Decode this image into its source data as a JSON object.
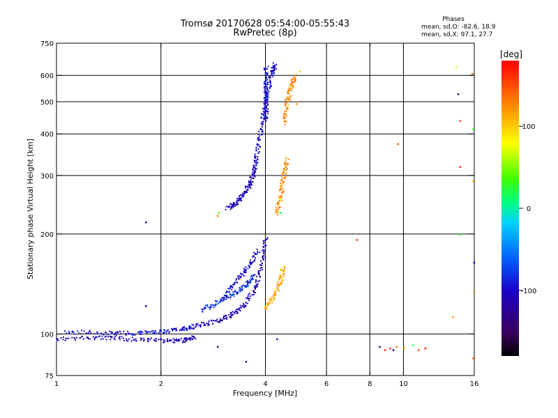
{
  "chart_data": {
    "type": "scatter",
    "title": "Tromsø 20170628 05:54:00-05:55:43",
    "subtitle": "RwPretec (8p)",
    "xlabel": "Frequency [MHz]",
    "ylabel": "Stationary phase Virtual Height [km]",
    "x_scale": "log",
    "y_scale": "log",
    "xlim": [
      1,
      16
    ],
    "ylim": [
      75,
      750
    ],
    "x_ticks": [
      1,
      2,
      4,
      6,
      8,
      10,
      16
    ],
    "x_ticklabels": [
      "1",
      "2",
      "4",
      "6",
      "8",
      "10",
      "16"
    ],
    "x_grid": [
      2,
      4,
      6,
      8,
      10
    ],
    "y_ticks": [
      75,
      100,
      200,
      300,
      400,
      500,
      600,
      750
    ],
    "y_ticklabels": [
      "75",
      "100",
      "200",
      "300",
      "400",
      "500",
      "600",
      "750"
    ],
    "y_grid": [
      100,
      200,
      300,
      400,
      500,
      600
    ],
    "stats": {
      "header": "Phases",
      "line_o": "mean, sd,O: -82.6, 18.9",
      "line_x": "mean, sd,X:  97.1, 27.7"
    },
    "colorbar": {
      "unit": "[deg]",
      "range": [
        -180,
        180
      ],
      "ticks": [
        100,
        0,
        -100
      ],
      "ticklabels": [
        "100",
        "0",
        "-100"
      ]
    },
    "series": [
      {
        "name": "trace-low-1",
        "phase": -105,
        "segments": [
          [
            1.0,
            97
          ],
          [
            1.3,
            98
          ],
          [
            1.6,
            97
          ],
          [
            2.0,
            96
          ],
          [
            2.3,
            96
          ],
          [
            2.5,
            98
          ]
        ]
      },
      {
        "name": "trace-low-2",
        "phase": -95,
        "segments": [
          [
            1.05,
            102
          ],
          [
            1.4,
            101
          ],
          [
            1.7,
            101
          ],
          [
            2.0,
            102
          ],
          [
            2.3,
            104
          ],
          [
            2.5,
            106
          ]
        ]
      },
      {
        "name": "trace-rise-1",
        "phase": -110,
        "segments": [
          [
            2.5,
            106
          ],
          [
            2.9,
            110
          ],
          [
            3.2,
            115
          ],
          [
            3.5,
            124
          ],
          [
            3.75,
            140
          ],
          [
            3.9,
            165
          ],
          [
            4.0,
            195
          ]
        ]
      },
      {
        "name": "trace-rise-2",
        "phase": -80,
        "segments": [
          [
            2.6,
            118
          ],
          [
            2.9,
            125
          ],
          [
            3.2,
            132
          ],
          [
            3.5,
            140
          ],
          [
            3.7,
            150
          ]
        ]
      },
      {
        "name": "trace-rise-3",
        "phase": -100,
        "segments": [
          [
            3.0,
            128
          ],
          [
            3.3,
            145
          ],
          [
            3.55,
            160
          ],
          [
            3.8,
            180
          ]
        ]
      },
      {
        "name": "trace-F-low",
        "phase": -105,
        "segments": [
          [
            3.1,
            240
          ],
          [
            3.3,
            250
          ],
          [
            3.45,
            265
          ],
          [
            3.6,
            285
          ],
          [
            3.7,
            310
          ],
          [
            3.75,
            340
          ]
        ]
      },
      {
        "name": "trace-F-high",
        "phase": -100,
        "segments": [
          [
            3.75,
            340
          ],
          [
            3.85,
            400
          ],
          [
            3.95,
            470
          ],
          [
            4.05,
            540
          ],
          [
            4.15,
            610
          ],
          [
            4.25,
            650
          ]
        ]
      },
      {
        "name": "trace-F-column",
        "phase": -95,
        "segments": [
          [
            4.0,
            440
          ],
          [
            4.0,
            500
          ],
          [
            4.0,
            560
          ],
          [
            4.0,
            640
          ]
        ]
      },
      {
        "name": "trace-x-low",
        "phase": 110,
        "segments": [
          [
            4.0,
            120
          ],
          [
            4.2,
            130
          ],
          [
            4.4,
            145
          ],
          [
            4.5,
            160
          ]
        ]
      },
      {
        "name": "trace-x-mid",
        "phase": 120,
        "segments": [
          [
            4.3,
            230
          ],
          [
            4.4,
            260
          ],
          [
            4.5,
            300
          ],
          [
            4.6,
            340
          ]
        ]
      },
      {
        "name": "trace-x-high",
        "phase": 125,
        "segments": [
          [
            4.5,
            430
          ],
          [
            4.6,
            500
          ],
          [
            4.75,
            560
          ],
          [
            4.85,
            600
          ]
        ]
      }
    ],
    "scatter": [
      {
        "x": 1.8,
        "y": 218,
        "phase": -110
      },
      {
        "x": 1.8,
        "y": 122,
        "phase": -100
      },
      {
        "x": 2.9,
        "y": 228,
        "phase": 130
      },
      {
        "x": 2.92,
        "y": 233,
        "phase": 40
      },
      {
        "x": 2.9,
        "y": 92,
        "phase": -150
      },
      {
        "x": 3.5,
        "y": 83,
        "phase": -120
      },
      {
        "x": 4.3,
        "y": 97,
        "phase": -90
      },
      {
        "x": 4.4,
        "y": 233,
        "phase": 10
      },
      {
        "x": 4.4,
        "y": 255,
        "phase": 80
      },
      {
        "x": 7.3,
        "y": 193,
        "phase": 160
      },
      {
        "x": 8.5,
        "y": 92,
        "phase": -140
      },
      {
        "x": 8.8,
        "y": 90,
        "phase": 170
      },
      {
        "x": 9.1,
        "y": 91,
        "phase": 160
      },
      {
        "x": 9.3,
        "y": 90,
        "phase": -120
      },
      {
        "x": 9.5,
        "y": 92,
        "phase": 140
      },
      {
        "x": 10.0,
        "y": 91,
        "phase": 110
      },
      {
        "x": 10.6,
        "y": 93,
        "phase": 20
      },
      {
        "x": 11.0,
        "y": 90,
        "phase": 150
      },
      {
        "x": 11.5,
        "y": 91,
        "phase": 170
      },
      {
        "x": 9.6,
        "y": 375,
        "phase": 150
      },
      {
        "x": 14.1,
        "y": 640,
        "phase": 70
      },
      {
        "x": 14.3,
        "y": 530,
        "phase": -150
      },
      {
        "x": 14.5,
        "y": 440,
        "phase": 160
      },
      {
        "x": 14.5,
        "y": 320,
        "phase": 170
      },
      {
        "x": 14.5,
        "y": 200,
        "phase": 30
      },
      {
        "x": 15.7,
        "y": 610,
        "phase": 140
      },
      {
        "x": 15.8,
        "y": 415,
        "phase": 30
      },
      {
        "x": 15.8,
        "y": 290,
        "phase": 110
      },
      {
        "x": 15.9,
        "y": 165,
        "phase": -100
      },
      {
        "x": 15.9,
        "y": 135,
        "phase": 120
      },
      {
        "x": 15.8,
        "y": 85,
        "phase": 140
      },
      {
        "x": 13.8,
        "y": 113,
        "phase": 120
      },
      {
        "x": 4.8,
        "y": 575,
        "phase": 120
      },
      {
        "x": 4.9,
        "y": 495,
        "phase": 120
      },
      {
        "x": 5.0,
        "y": 620,
        "phase": 100
      }
    ]
  }
}
